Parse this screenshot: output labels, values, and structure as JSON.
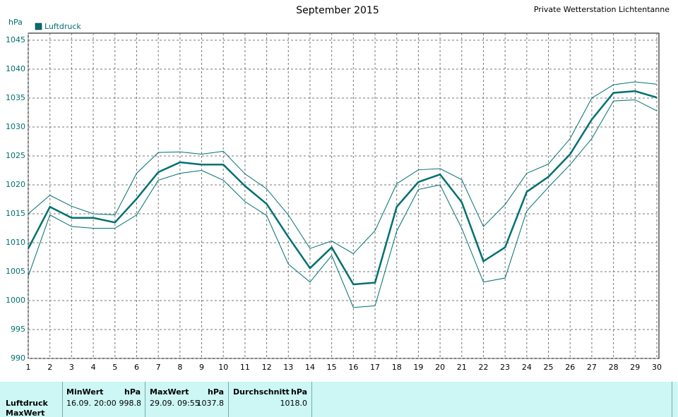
{
  "chart_data": {
    "type": "line",
    "title": "September 2015",
    "subtitle": "Private Wetterstation Lichtentanne",
    "y_label": "hPa",
    "x": [
      1,
      2,
      3,
      4,
      5,
      6,
      7,
      8,
      9,
      10,
      11,
      12,
      13,
      14,
      15,
      16,
      17,
      18,
      19,
      20,
      21,
      22,
      23,
      24,
      25,
      26,
      27,
      28,
      29,
      30
    ],
    "xlim": [
      1,
      30
    ],
    "xticks": [
      1,
      2,
      3,
      4,
      5,
      6,
      7,
      8,
      9,
      10,
      11,
      12,
      13,
      14,
      15,
      16,
      17,
      18,
      19,
      20,
      21,
      22,
      23,
      24,
      25,
      26,
      27,
      28,
      29,
      30
    ],
    "ylim": [
      990,
      1045
    ],
    "yticks": [
      990,
      995,
      1000,
      1005,
      1010,
      1015,
      1020,
      1025,
      1030,
      1035,
      1040,
      1045
    ],
    "grid": true,
    "series": [
      {
        "name": "Luftdruck",
        "color": "#007070",
        "values": [
          1009,
          1016.2,
          1014.3,
          1014.3,
          1013.5,
          1017.6,
          1022.2,
          1023.9,
          1023.5,
          1023.5,
          1019.8,
          1016.7,
          1011,
          1005.6,
          1009.2,
          1002.8,
          1003.1,
          1016.2,
          1020.5,
          1021.8,
          1017,
          1006.8,
          1009.2,
          1018.8,
          1021.4,
          1025.3,
          1031.3,
          1035.9,
          1036.2,
          1035.1
        ]
      },
      {
        "color": "#007070",
        "values": [
          1015,
          1018.2,
          1016.3,
          1015,
          1014.8,
          1022,
          1025.6,
          1025.7,
          1025.3,
          1025.8,
          1021.9,
          1019.3,
          1014.8,
          1009,
          1010.3,
          1008.1,
          1012.1,
          1020.2,
          1022.6,
          1022.8,
          1020.9,
          1012.8,
          1016.6,
          1022,
          1023.6,
          1028,
          1035,
          1037.3,
          1037.8,
          1037.4
        ]
      },
      {
        "color": "#007070",
        "values": [
          1004.2,
          1014.8,
          1012.8,
          1012.5,
          1012.5,
          1014.8,
          1020.8,
          1022,
          1022.5,
          1020.8,
          1017.1,
          1014.7,
          1006.3,
          1003.2,
          1007.8,
          998.8,
          999.1,
          1012,
          1019.2,
          1020,
          1012.5,
          1003.2,
          1003.9,
          1015.5,
          1019.6,
          1023.5,
          1028,
          1034.5,
          1034.7,
          1032.8
        ]
      }
    ]
  },
  "table": {
    "columns": [
      "MinWert",
      "hPa",
      "MaxWert",
      "hPa",
      "Durchschnitt",
      "hPa"
    ],
    "rows": [
      [
        "Luftdruck",
        "16.09.",
        "20:00",
        "998.8",
        "29.09.",
        "09:55",
        "1037.8",
        "1018.0"
      ],
      [
        "MaxWert"
      ]
    ]
  }
}
